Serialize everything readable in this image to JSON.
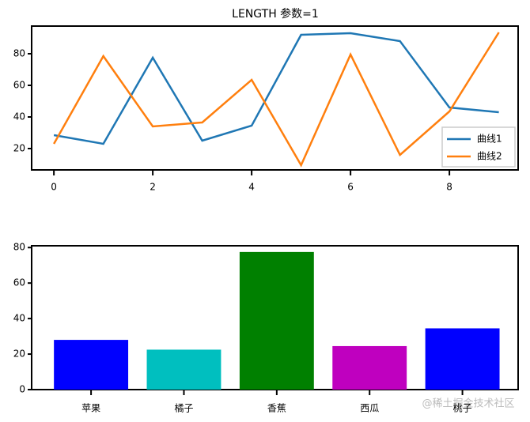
{
  "chart_data": [
    {
      "type": "line",
      "title": "LENGTH 参数=1",
      "x": [
        0,
        1,
        2,
        3,
        4,
        5,
        6,
        7,
        8,
        9
      ],
      "series": [
        {
          "name": "曲线1",
          "color": "#1f77b4",
          "values": [
            28.5,
            23,
            77.5,
            25,
            34.5,
            92,
            93,
            88,
            46,
            43
          ]
        },
        {
          "name": "曲线2",
          "color": "#ff7f0e",
          "values": [
            23,
            78.5,
            34,
            36.5,
            63.5,
            9.5,
            79.5,
            16,
            43.5,
            93.5
          ]
        }
      ],
      "xlim": [
        -0.45,
        9.39
      ],
      "xticks": [
        0,
        2,
        4,
        6,
        8
      ],
      "ylim": [
        6.5,
        97.5
      ],
      "yticks": [
        20,
        40,
        60,
        80
      ],
      "legend": "lower right"
    },
    {
      "type": "bar",
      "categories": [
        "苹果",
        "橘子",
        "香蕉",
        "西瓜",
        "桃子"
      ],
      "values": [
        28,
        22.5,
        77.5,
        24.5,
        34.5
      ],
      "colors": [
        "#0000ff",
        "#00bfbf",
        "#008000",
        "#bf00bf",
        "#0000ff"
      ],
      "ylim": [
        0,
        81
      ],
      "yticks": [
        0,
        20,
        40,
        60,
        80
      ]
    }
  ],
  "watermark": "@稀土掘金技术社区"
}
